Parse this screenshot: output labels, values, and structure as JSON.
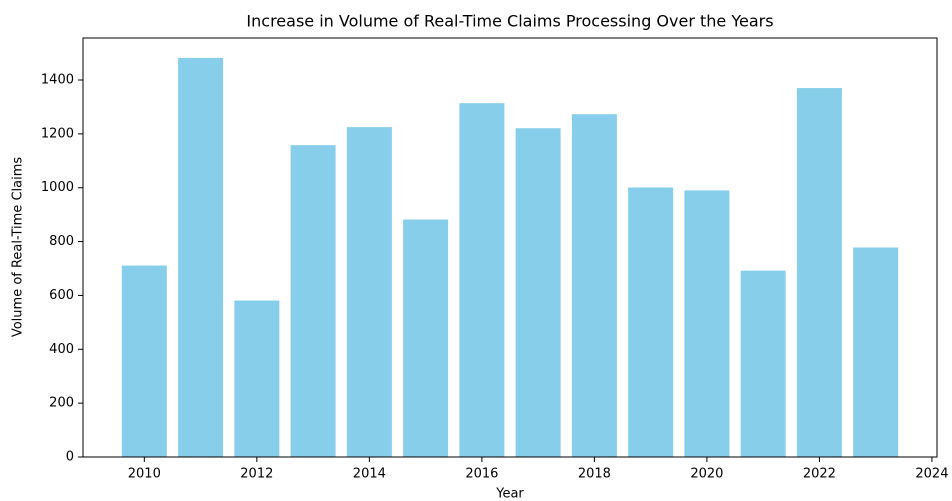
{
  "chart_data": {
    "type": "bar",
    "title": "Increase in Volume of Real-Time Claims Processing Over the Years",
    "x_label": "Year",
    "y_label": "Volume of Real-Time Claims",
    "x": [
      2010,
      2011,
      2012,
      2013,
      2014,
      2015,
      2016,
      2017,
      2018,
      2019,
      2020,
      2021,
      2022,
      2023
    ],
    "values": [
      711,
      1482,
      581,
      1158,
      1225,
      882,
      1314,
      1221,
      1273,
      1001,
      990,
      692,
      1370,
      778
    ],
    "color": "#87ceeb",
    "xlim": [
      2008.91,
      2024.09
    ],
    "xticks": [
      2010,
      2012,
      2014,
      2016,
      2018,
      2020,
      2022,
      2024
    ],
    "ylim": [
      0,
      1556
    ],
    "yticks": [
      0,
      200,
      400,
      600,
      800,
      1000,
      1200,
      1400
    ],
    "grid": false
  }
}
